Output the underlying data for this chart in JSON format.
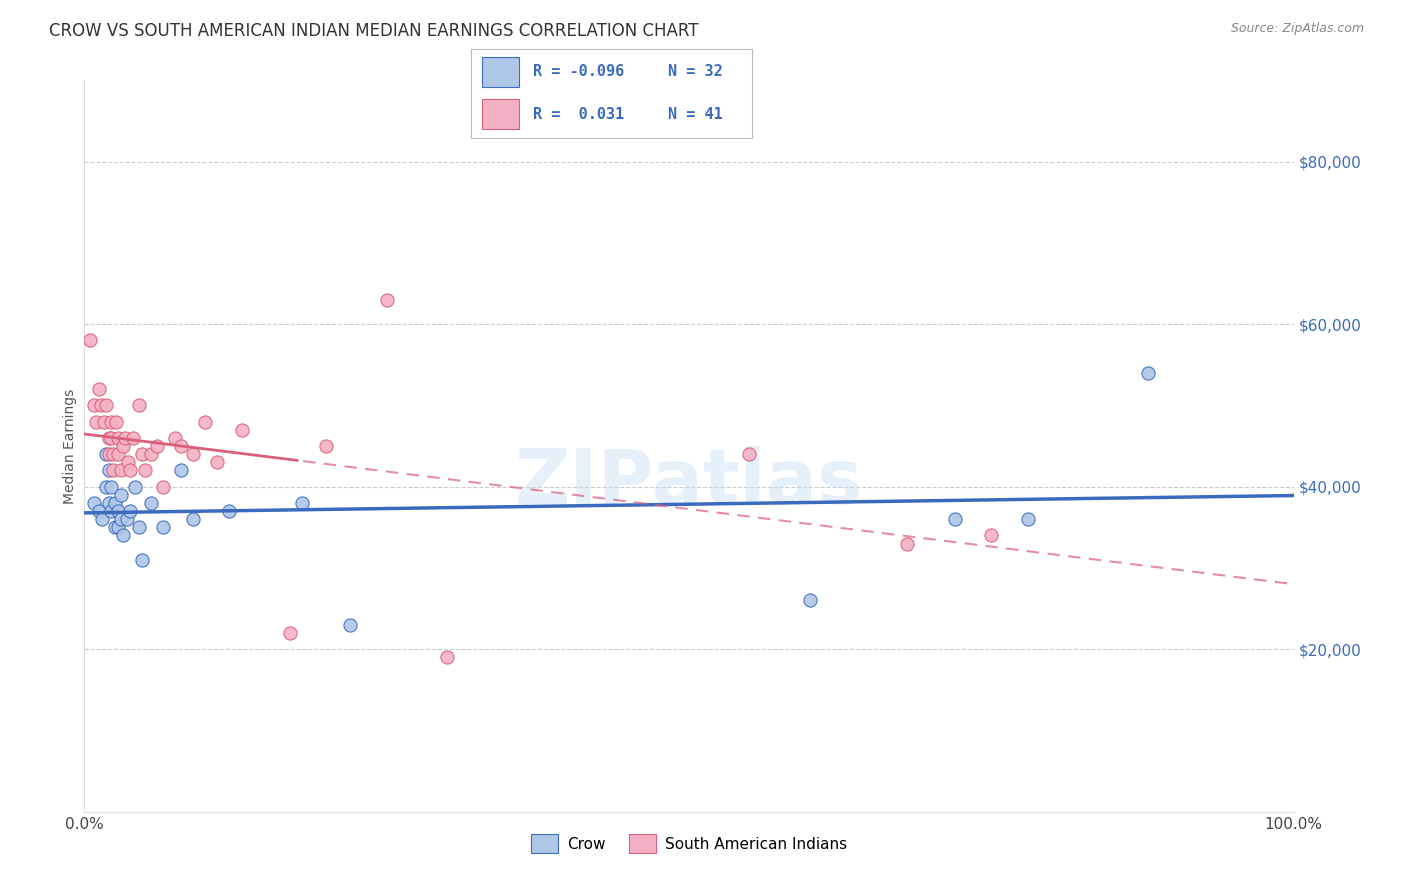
{
  "title": "CROW VS SOUTH AMERICAN INDIAN MEDIAN EARNINGS CORRELATION CHART",
  "source": "Source: ZipAtlas.com",
  "ylabel": "Median Earnings",
  "xlim": [
    0,
    1.0
  ],
  "ylim": [
    0,
    90000
  ],
  "yticks": [
    20000,
    40000,
    60000,
    80000
  ],
  "ytick_labels": [
    "$20,000",
    "$40,000",
    "$60,000",
    "$80,000"
  ],
  "xticks": [
    0.0,
    0.1,
    0.2,
    0.3,
    0.4,
    0.5,
    0.6,
    0.7,
    0.8,
    0.9,
    1.0
  ],
  "xtick_labels": [
    "0.0%",
    "",
    "",
    "",
    "",
    "",
    "",
    "",
    "",
    "",
    "100.0%"
  ],
  "background_color": "#ffffff",
  "grid_color": "#cccccc",
  "watermark": "ZIPatlas",
  "crow_color": "#aec6e8",
  "crow_line_color": "#3a6bbf",
  "sai_color": "#f4b0c5",
  "sai_line_color": "#d95f7a",
  "crow_points_x": [
    0.008,
    0.012,
    0.015,
    0.018,
    0.018,
    0.02,
    0.02,
    0.022,
    0.022,
    0.025,
    0.025,
    0.028,
    0.028,
    0.03,
    0.03,
    0.032,
    0.035,
    0.038,
    0.042,
    0.045,
    0.048,
    0.055,
    0.065,
    0.08,
    0.09,
    0.12,
    0.18,
    0.22,
    0.6,
    0.72,
    0.78,
    0.88
  ],
  "crow_points_y": [
    38000,
    37000,
    36000,
    44000,
    40000,
    42000,
    38000,
    40000,
    37000,
    38000,
    35000,
    37000,
    35000,
    39000,
    36000,
    34000,
    36000,
    37000,
    40000,
    35000,
    31000,
    38000,
    35000,
    42000,
    36000,
    37000,
    38000,
    23000,
    26000,
    36000,
    36000,
    54000
  ],
  "sai_points_x": [
    0.005,
    0.008,
    0.01,
    0.012,
    0.014,
    0.016,
    0.018,
    0.02,
    0.02,
    0.022,
    0.022,
    0.024,
    0.024,
    0.026,
    0.028,
    0.028,
    0.03,
    0.032,
    0.034,
    0.036,
    0.038,
    0.04,
    0.045,
    0.048,
    0.05,
    0.055,
    0.06,
    0.065,
    0.075,
    0.08,
    0.09,
    0.1,
    0.11,
    0.13,
    0.17,
    0.2,
    0.25,
    0.3,
    0.55,
    0.68,
    0.75
  ],
  "sai_points_y": [
    58000,
    50000,
    48000,
    52000,
    50000,
    48000,
    50000,
    46000,
    44000,
    48000,
    46000,
    44000,
    42000,
    48000,
    46000,
    44000,
    42000,
    45000,
    46000,
    43000,
    42000,
    46000,
    50000,
    44000,
    42000,
    44000,
    45000,
    40000,
    46000,
    45000,
    44000,
    48000,
    43000,
    47000,
    22000,
    45000,
    63000,
    19000,
    44000,
    33000,
    34000
  ],
  "crow_r": -0.096,
  "sai_r": 0.031,
  "marker_size": 90,
  "title_fontsize": 12,
  "tick_fontsize": 11,
  "legend_fontsize": 12
}
